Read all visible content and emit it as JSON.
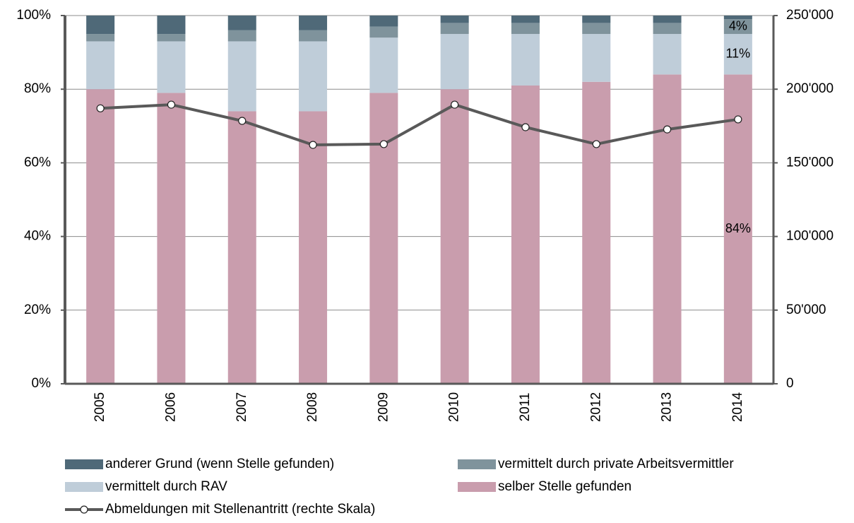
{
  "chart_data": {
    "type": "bar",
    "stacked": true,
    "categories": [
      "2005",
      "2006",
      "2007",
      "2008",
      "2009",
      "2010",
      "2011",
      "2012",
      "2013",
      "2014"
    ],
    "series": [
      {
        "name": "selber Stelle gefunden",
        "color": "#c99dad",
        "values": [
          80,
          79,
          74,
          74,
          79,
          80,
          81,
          82,
          84,
          84
        ],
        "value_labels": [
          null,
          null,
          null,
          null,
          null,
          null,
          null,
          null,
          null,
          "84%"
        ]
      },
      {
        "name": "vermittelt durch RAV",
        "color": "#bfcdd9",
        "values": [
          13,
          14,
          19,
          19,
          15,
          15,
          14,
          13,
          11,
          11
        ],
        "value_labels": [
          null,
          null,
          null,
          null,
          null,
          null,
          null,
          null,
          null,
          "11%"
        ]
      },
      {
        "name": "vermittelt durch private Arbeitsvermittler",
        "color": "#7f939c",
        "values": [
          2,
          2,
          3,
          3,
          3,
          3,
          3,
          3,
          3,
          4
        ],
        "value_labels": [
          null,
          null,
          null,
          null,
          null,
          null,
          null,
          null,
          null,
          "4%"
        ]
      },
      {
        "name": "anderer Grund (wenn Stelle gefunden)",
        "color": "#4f6978",
        "values": [
          5,
          5,
          4,
          4,
          3,
          2,
          2,
          2,
          2,
          1
        ]
      },
      {
        "name": "Abmeldungen mit Stellenantritt (rechte Skala)",
        "type": "line",
        "axis": "y2",
        "color": "#595959",
        "values": [
          187000,
          189500,
          178500,
          162200,
          162700,
          189500,
          174200,
          162700,
          172700,
          179500
        ]
      }
    ],
    "ylim": [
      0,
      100
    ],
    "yticks": [
      {
        "value": 0,
        "label": "0%"
      },
      {
        "value": 20,
        "label": "20%"
      },
      {
        "value": 40,
        "label": "40%"
      },
      {
        "value": 60,
        "label": "60%"
      },
      {
        "value": 80,
        "label": "80%"
      },
      {
        "value": 100,
        "label": "100%"
      }
    ],
    "y2lim": [
      0,
      250000
    ],
    "y2ticks": [
      0,
      {
        "value": 50000,
        "label": "50'000"
      },
      {
        "value": 100000,
        "label": "100'000"
      },
      {
        "value": 150000,
        "label": "150'000"
      },
      {
        "value": 200000,
        "label": "200'000"
      },
      {
        "value": 250000,
        "label": "250'000"
      }
    ],
    "grid": true,
    "legend": "bottom"
  }
}
